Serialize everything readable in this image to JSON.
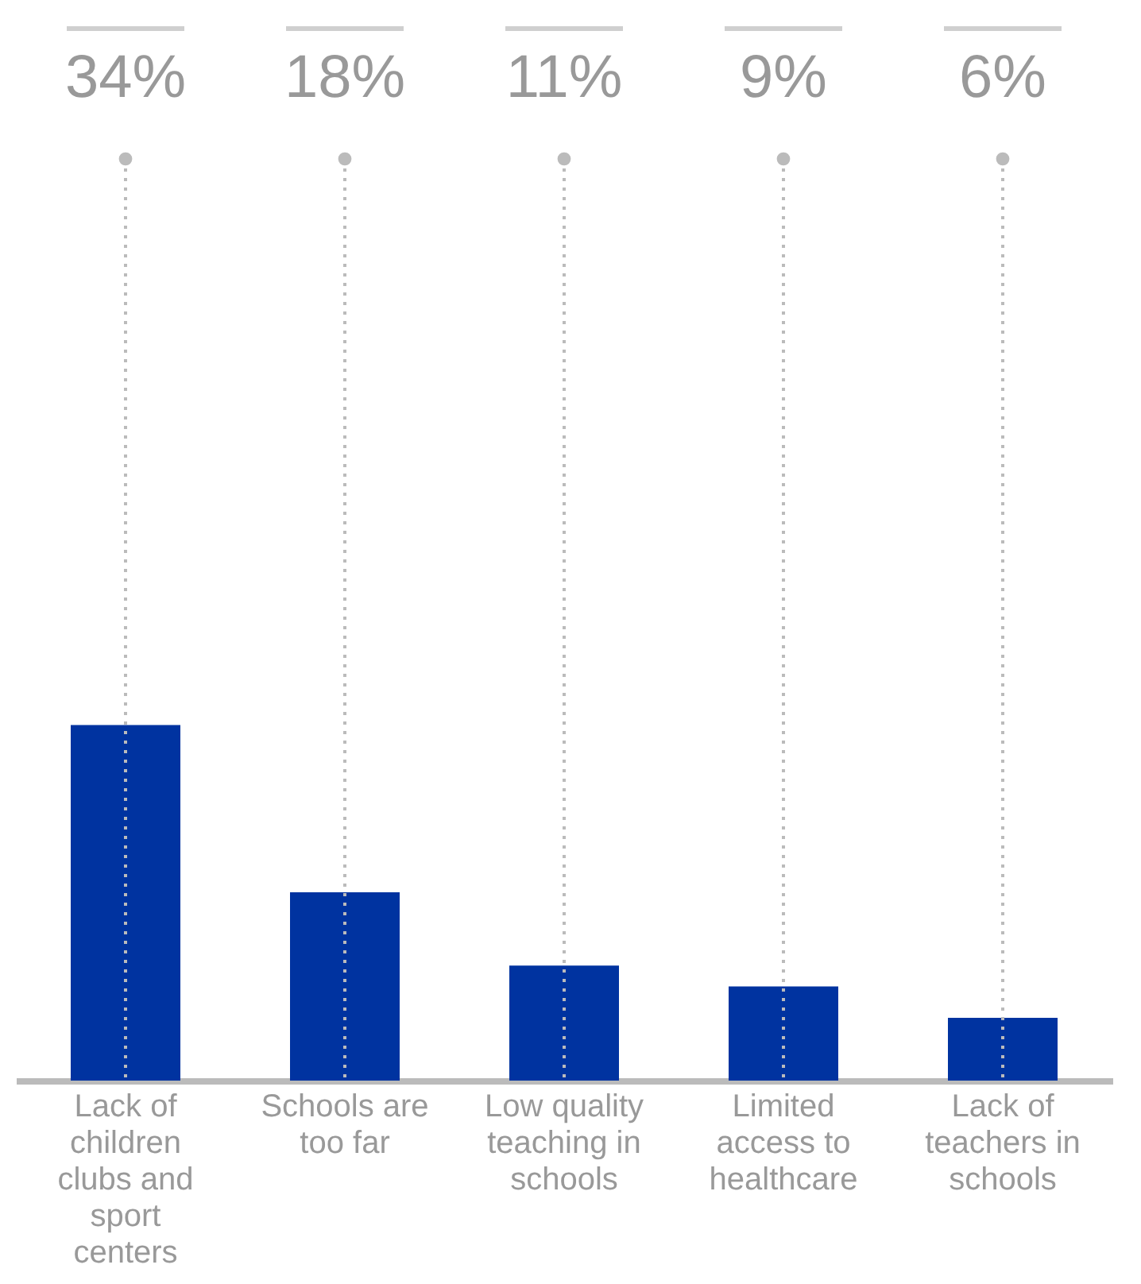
{
  "chart_data": {
    "type": "bar",
    "categories": [
      "Lack of children clubs and sport centers",
      "Schools are too far",
      "Low quality teaching in schools",
      "Limited access to healthcare",
      "Lack of teachers in schools"
    ],
    "values": [
      34,
      18,
      11,
      9,
      6
    ],
    "color": "#0033a0",
    "grid": "x",
    "value_labels": [
      "34%",
      "18%",
      "11%",
      "9%",
      "6%"
    ]
  }
}
